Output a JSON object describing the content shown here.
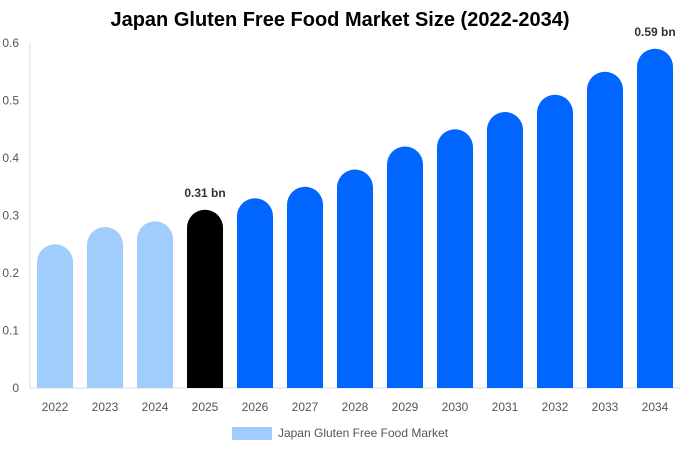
{
  "chart_data": {
    "type": "bar",
    "title": "Japan Gluten Free Food Market Size (2022-2034)",
    "xlabel": "",
    "ylabel": "",
    "ylim": [
      0,
      0.6
    ],
    "yticks": [
      0,
      0.1,
      0.2,
      0.3,
      0.4,
      0.5,
      0.6
    ],
    "ytick_labels": [
      "0",
      "0.1",
      "0.2",
      "0.3",
      "0.4",
      "0.5",
      "0.6"
    ],
    "grid": false,
    "legend_position": "bottom",
    "categories": [
      "2022",
      "2023",
      "2024",
      "2025",
      "2026",
      "2027",
      "2028",
      "2029",
      "2030",
      "2031",
      "2032",
      "2033",
      "2034"
    ],
    "series": [
      {
        "name": "Japan Gluten Free Food Market",
        "values": [
          0.25,
          0.28,
          0.29,
          0.31,
          0.33,
          0.35,
          0.38,
          0.42,
          0.45,
          0.48,
          0.51,
          0.55,
          0.59
        ]
      }
    ],
    "bar_colors": [
      "#a0cdfc",
      "#a0cdfc",
      "#a0cdfc",
      "#000000",
      "#0066ff",
      "#0066ff",
      "#0066ff",
      "#0066ff",
      "#0066ff",
      "#0066ff",
      "#0066ff",
      "#0066ff",
      "#0066ff"
    ],
    "annotations": [
      {
        "category": "2025",
        "text": "0.31 bn"
      },
      {
        "category": "2034",
        "text": "0.59 bn"
      }
    ]
  },
  "legend": {
    "label": "Japan Gluten Free Food Market",
    "color": "#a0cdfc"
  }
}
